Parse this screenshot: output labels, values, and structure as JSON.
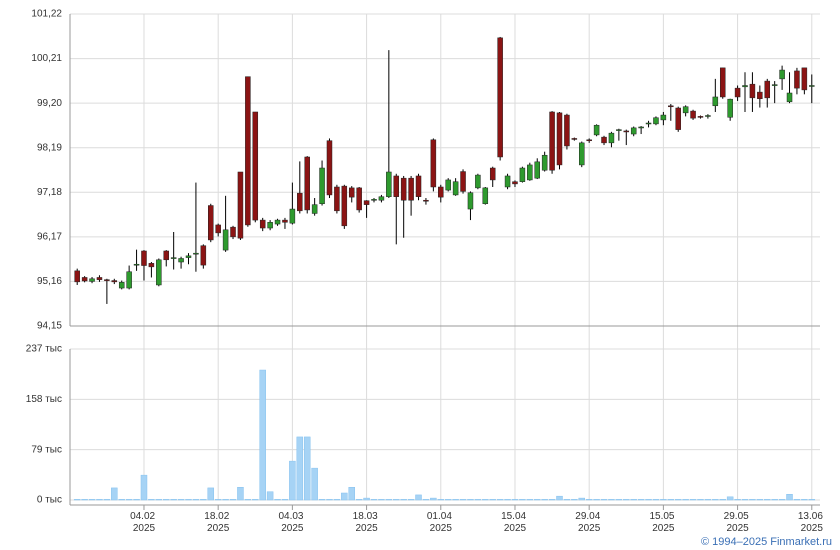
{
  "chart_data": [
    {
      "type": "candlestick",
      "up_color": "#2e9a2e",
      "down_color": "#8b1414",
      "ylim": [
        94.15,
        101.22
      ],
      "yticks": [
        {
          "value": 94.15,
          "label": "94,15"
        },
        {
          "value": 95.16,
          "label": "95,16"
        },
        {
          "value": 96.17,
          "label": "96,17"
        },
        {
          "value": 97.18,
          "label": "97,18"
        },
        {
          "value": 98.19,
          "label": "98,19"
        },
        {
          "value": 99.2,
          "label": "99,20"
        },
        {
          "value": 100.21,
          "label": "100,21"
        },
        {
          "value": 101.22,
          "label": "101,22"
        }
      ],
      "grid": true,
      "open": [
        95.4,
        95.25,
        95.16,
        95.25,
        95.2,
        95.18,
        95.01,
        95.01,
        95.55,
        95.85,
        95.57,
        95.08,
        95.85,
        95.68,
        95.6,
        95.7,
        95.78,
        95.97,
        96.88,
        96.44,
        95.87,
        96.39,
        97.64,
        99.8,
        99.0,
        96.55,
        96.37,
        96.46,
        96.55,
        96.48,
        97.16,
        97.98,
        96.7,
        96.92,
        98.35,
        97.3,
        97.32,
        97.28,
        97.28,
        96.99,
        97.0,
        97.0,
        97.08,
        97.55,
        97.5,
        97.5,
        97.55,
        97.0,
        98.37,
        97.3,
        97.23,
        97.12,
        97.65,
        96.8,
        97.28,
        96.92,
        97.73,
        100.68,
        97.3,
        97.42,
        97.42,
        97.46,
        97.5,
        97.68,
        99.0,
        98.98,
        98.93,
        98.4,
        97.8,
        98.37,
        98.48,
        98.43,
        98.3,
        98.6,
        98.57,
        98.5,
        98.66,
        98.75,
        98.73,
        98.82,
        99.14,
        99.09,
        98.98,
        99.02,
        98.9,
        98.9,
        99.14,
        100.0,
        98.88,
        99.54,
        99.57,
        99.63,
        99.45,
        99.7,
        99.6,
        99.75,
        99.23,
        99.93,
        100.0,
        99.6
      ],
      "high": [
        95.45,
        95.28,
        95.26,
        95.3,
        95.22,
        95.22,
        95.18,
        95.52,
        95.88,
        95.87,
        95.6,
        95.68,
        95.87,
        96.28,
        95.72,
        95.8,
        97.4,
        96.0,
        96.92,
        96.47,
        97.1,
        96.42,
        97.64,
        99.8,
        99.0,
        96.6,
        96.55,
        96.58,
        96.6,
        97.4,
        97.88,
        98.0,
        97.05,
        97.9,
        98.4,
        97.35,
        97.35,
        97.32,
        97.3,
        97.0,
        97.05,
        97.12,
        100.4,
        97.6,
        97.55,
        97.55,
        97.6,
        97.05,
        98.4,
        97.35,
        97.5,
        97.5,
        97.7,
        97.2,
        97.6,
        97.3,
        97.76,
        100.7,
        97.6,
        97.45,
        97.76,
        97.85,
        97.95,
        98.1,
        99.02,
        99.0,
        98.96,
        98.42,
        98.33,
        98.4,
        98.72,
        98.46,
        98.55,
        98.62,
        98.6,
        98.67,
        98.68,
        98.8,
        98.9,
        99.0,
        99.18,
        99.12,
        99.15,
        99.05,
        98.92,
        98.95,
        99.75,
        100.0,
        99.3,
        99.6,
        99.9,
        99.9,
        99.6,
        99.75,
        99.7,
        100.05,
        99.9,
        100.0,
        100.0,
        99.85
      ],
      "low": [
        95.08,
        95.14,
        95.12,
        95.15,
        94.65,
        95.1,
        94.98,
        94.98,
        95.4,
        95.18,
        95.25,
        95.05,
        95.5,
        95.43,
        95.45,
        95.55,
        95.38,
        95.45,
        96.05,
        96.18,
        95.83,
        96.12,
        96.1,
        96.4,
        96.5,
        96.3,
        96.32,
        96.42,
        96.35,
        96.45,
        96.7,
        96.7,
        96.65,
        96.88,
        97.05,
        96.7,
        96.35,
        96.95,
        96.72,
        96.6,
        96.95,
        96.95,
        97.05,
        96.0,
        96.15,
        96.65,
        97.0,
        96.9,
        97.2,
        96.95,
        97.2,
        97.1,
        97.15,
        96.55,
        97.25,
        96.9,
        97.3,
        97.9,
        97.25,
        97.3,
        97.4,
        97.44,
        97.48,
        97.65,
        97.6,
        97.7,
        98.15,
        98.35,
        97.75,
        98.3,
        98.45,
        98.25,
        98.2,
        98.35,
        98.25,
        98.45,
        98.5,
        98.65,
        98.7,
        98.7,
        98.8,
        98.55,
        98.9,
        98.82,
        98.85,
        98.85,
        99.0,
        99.3,
        98.8,
        99.25,
        99.0,
        99.0,
        99.1,
        99.1,
        99.2,
        99.5,
        99.2,
        99.4,
        99.4,
        99.2
      ],
      "close": [
        95.15,
        95.17,
        95.22,
        95.2,
        95.18,
        95.15,
        95.14,
        95.38,
        95.55,
        95.52,
        95.49,
        95.65,
        95.65,
        95.7,
        95.68,
        95.74,
        95.8,
        95.53,
        96.1,
        96.26,
        96.33,
        96.17,
        96.14,
        96.44,
        96.55,
        96.37,
        96.5,
        96.55,
        96.5,
        96.8,
        96.76,
        96.78,
        96.9,
        97.73,
        97.12,
        96.76,
        96.42,
        97.07,
        96.78,
        96.9,
        97.02,
        97.08,
        97.64,
        97.08,
        97.0,
        97.0,
        97.08,
        96.98,
        97.3,
        97.07,
        97.46,
        97.42,
        97.2,
        97.17,
        97.57,
        97.28,
        97.46,
        97.98,
        97.55,
        97.37,
        97.73,
        97.8,
        97.87,
        98.02,
        97.68,
        97.8,
        98.23,
        98.38,
        98.3,
        98.35,
        98.7,
        98.3,
        98.52,
        98.6,
        98.55,
        98.64,
        98.66,
        98.75,
        98.87,
        98.93,
        99.12,
        98.6,
        99.12,
        98.86,
        98.88,
        98.92,
        99.34,
        99.34,
        99.29,
        99.34,
        99.6,
        99.32,
        99.3,
        99.32,
        99.62,
        99.95,
        99.43,
        99.54,
        99.5,
        99.6
      ]
    },
    {
      "type": "bar",
      "color": "#a6d3f5",
      "ylim": [
        0,
        237
      ],
      "yticks": [
        {
          "value": 0,
          "label": "0 тыс"
        },
        {
          "value": 79,
          "label": "79 тыс"
        },
        {
          "value": 158,
          "label": "158 тыс"
        },
        {
          "value": 237,
          "label": "237 тыс"
        }
      ],
      "grid": true,
      "categories": [
        null,
        null,
        null,
        null,
        null,
        null,
        null,
        null,
        null,
        "04.02 2025",
        null,
        null,
        null,
        null,
        null,
        null,
        null,
        null,
        null,
        "18.02 2025",
        null,
        null,
        null,
        null,
        null,
        null,
        null,
        null,
        null,
        "04.03 2025",
        null,
        null,
        null,
        null,
        null,
        null,
        null,
        null,
        null,
        "18.03 2025",
        null,
        null,
        null,
        null,
        null,
        null,
        null,
        null,
        null,
        "01.04 2025",
        null,
        null,
        null,
        null,
        null,
        null,
        null,
        null,
        null,
        "15.04 2025",
        null,
        null,
        null,
        null,
        null,
        null,
        null,
        null,
        null,
        "29.04 2025",
        null,
        null,
        null,
        null,
        null,
        null,
        null,
        null,
        null,
        "15.05 2025",
        null,
        null,
        null,
        null,
        null,
        null,
        null,
        null,
        null,
        "29.05 2025",
        null,
        null,
        null,
        null,
        null,
        null,
        null,
        null,
        null,
        "13.06 2025"
      ],
      "values": [
        1,
        1,
        1,
        1,
        1,
        19,
        1,
        1,
        1,
        39,
        1,
        1,
        1,
        1,
        1,
        1,
        1,
        1,
        19,
        1,
        1,
        1,
        20,
        1,
        1,
        204,
        13,
        1,
        1,
        61,
        99,
        99,
        50,
        1,
        1,
        1,
        11,
        20,
        1,
        3,
        1,
        1,
        1,
        1,
        1,
        1,
        8,
        1,
        3,
        1,
        1,
        1,
        1,
        1,
        1,
        1,
        1,
        1,
        1,
        1,
        1,
        1,
        1,
        1,
        1,
        6,
        1,
        1,
        3,
        1,
        1,
        1,
        1,
        1,
        1,
        1,
        1,
        1,
        1,
        1,
        1,
        1,
        1,
        1,
        1,
        1,
        1,
        1,
        5,
        1,
        1,
        1,
        1,
        1,
        1,
        1,
        9,
        1,
        1,
        1
      ]
    }
  ],
  "source": "© 1994–2025 Finmarket.ru"
}
